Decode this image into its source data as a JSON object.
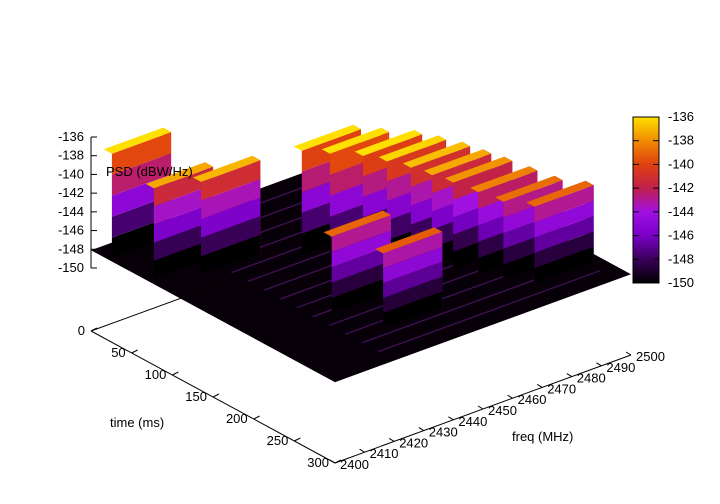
{
  "chart_data": {
    "type": "surface3d",
    "zlabel": "PSD (dBW/Hz)",
    "xlabel": "freq (MHz)",
    "ylabel": "time (ms)",
    "xlim": [
      2400,
      2500
    ],
    "ylim": [
      0,
      300
    ],
    "zlim": [
      -150,
      -136
    ],
    "x_ticks": [
      "2400",
      "2410",
      "2420",
      "2430",
      "2440",
      "2450",
      "2460",
      "2470",
      "2480",
      "2490",
      "2500"
    ],
    "y_ticks": [
      "0",
      "50",
      "100",
      "150",
      "200",
      "250",
      "300"
    ],
    "z_ticks": [
      "-136",
      "-138",
      "-140",
      "-142",
      "-144",
      "-146",
      "-148",
      "-150"
    ],
    "colorbar_ticks": [
      "-136",
      "-138",
      "-140",
      "-142",
      "-144",
      "-146",
      "-148",
      "-150"
    ],
    "colormap": [
      "#000000",
      "#3a005a",
      "#7a00c8",
      "#a010e0",
      "#c0204c",
      "#e04010",
      "#f08c00",
      "#ffe000"
    ],
    "floor_level": -150,
    "bursts": [
      {
        "f1": 2401,
        "f2": 2421,
        "t": 12,
        "z": -137
      },
      {
        "f1": 2402,
        "f2": 2422,
        "t": 60,
        "z": -138.8
      },
      {
        "f1": 2413,
        "f2": 2433,
        "t": 78,
        "z": -138.5
      },
      {
        "f1": 2441,
        "f2": 2461,
        "t": 100,
        "z": -137.2
      },
      {
        "f1": 2445,
        "f2": 2465,
        "t": 120,
        "z": -137
      },
      {
        "f1": 2452,
        "f2": 2472,
        "t": 135,
        "z": -137.4
      },
      {
        "f1": 2456,
        "f2": 2476,
        "t": 150,
        "z": -137.8
      },
      {
        "f1": 2460,
        "f2": 2480,
        "t": 165,
        "z": -138.3
      },
      {
        "f1": 2463,
        "f2": 2483,
        "t": 180,
        "z": -138.8
      },
      {
        "f1": 2466,
        "f2": 2486,
        "t": 195,
        "z": -139.3
      },
      {
        "f1": 2469,
        "f2": 2489,
        "t": 215,
        "z": -139.8
      },
      {
        "f1": 2472,
        "f2": 2492,
        "t": 235,
        "z": -140.3
      },
      {
        "f1": 2477,
        "f2": 2497,
        "t": 255,
        "z": -140.5
      },
      {
        "f1": 2425,
        "f2": 2445,
        "t": 195,
        "z": -140.5
      },
      {
        "f1": 2430,
        "f2": 2450,
        "t": 240,
        "z": -140.8
      }
    ]
  }
}
